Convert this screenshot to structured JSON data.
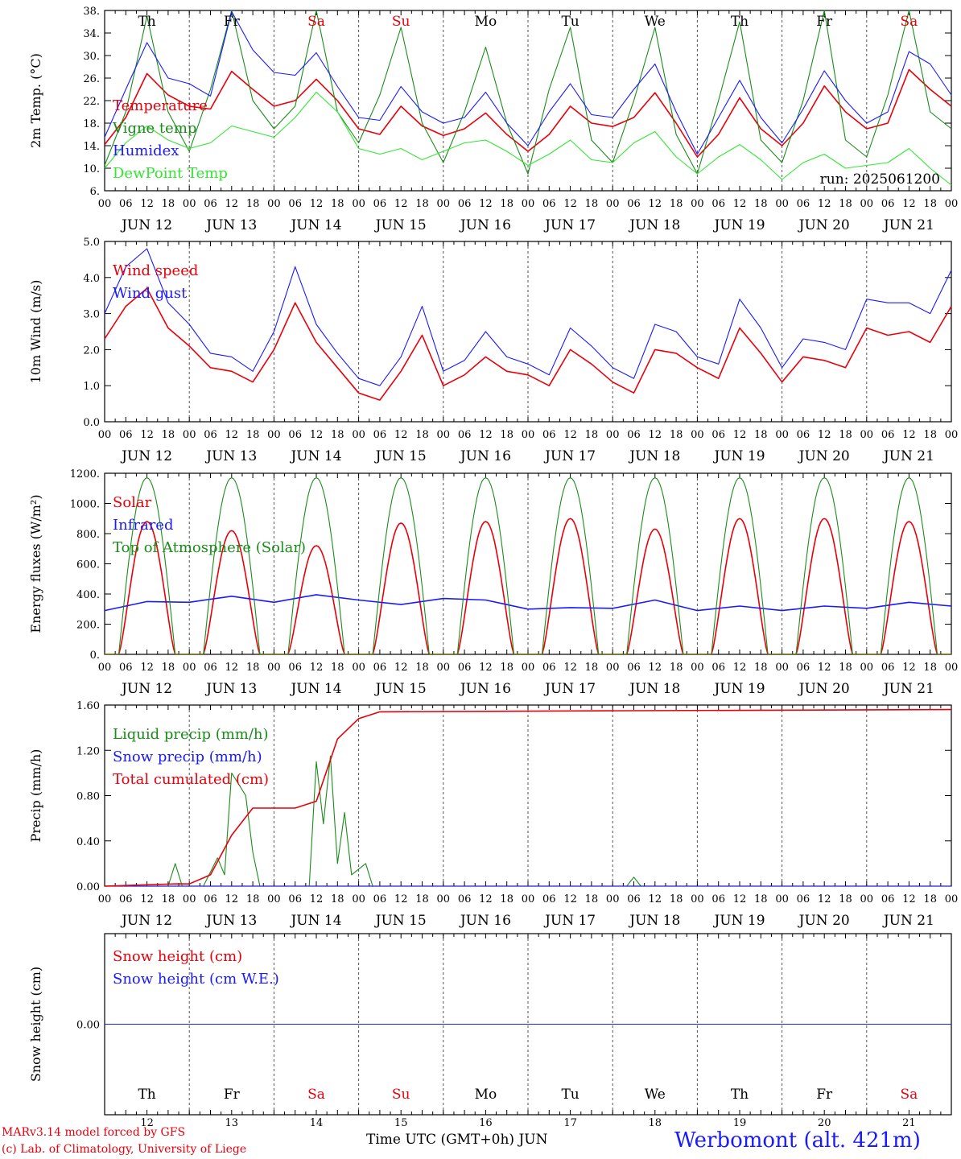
{
  "colors": {
    "red": "#e8000b",
    "green": "#1a8c1a",
    "blue": "#1a1aff",
    "lightgreen": "#33e633",
    "black": "#000000",
    "grid": "#555555"
  },
  "run_label": "run: 2025061200",
  "days": [
    {
      "abbr": "Th",
      "date": "JUN 12",
      "num": "12",
      "weekend": false
    },
    {
      "abbr": "Fr",
      "date": "JUN 13",
      "num": "13",
      "weekend": false
    },
    {
      "abbr": "Sa",
      "date": "JUN 14",
      "num": "14",
      "weekend": true
    },
    {
      "abbr": "Su",
      "date": "JUN 15",
      "num": "15",
      "weekend": true
    },
    {
      "abbr": "Mo",
      "date": "JUN 16",
      "num": "16",
      "weekend": false
    },
    {
      "abbr": "Tu",
      "date": "JUN 17",
      "num": "17",
      "weekend": false
    },
    {
      "abbr": "We",
      "date": "JUN 18",
      "num": "18",
      "weekend": false
    },
    {
      "abbr": "Th",
      "date": "JUN 19",
      "num": "19",
      "weekend": false
    },
    {
      "abbr": "Fr",
      "date": "JUN 20",
      "num": "20",
      "weekend": false
    },
    {
      "abbr": "Sa",
      "date": "JUN 21",
      "num": "21",
      "weekend": true
    }
  ],
  "hour_ticks": [
    "00",
    "06",
    "12",
    "18"
  ],
  "footer": {
    "credit_line1": "MARv3.14 model forced by GFS",
    "credit_line2": "(c) Lab. of Climatology, University of Liege",
    "xlabel": "Time UTC (GMT+0h)",
    "month": "JUN",
    "station": "Werbomont (alt. 421m)"
  },
  "chart_data": [
    {
      "type": "line",
      "ylabel": "2m Temp. (°C)",
      "ylim": [
        6,
        38
      ],
      "yticks": [
        6,
        10,
        14,
        18,
        22,
        26,
        30,
        34,
        38
      ],
      "ytick_labels": [
        "6.",
        "10.",
        "14.",
        "18.",
        "22.",
        "26.",
        "30.",
        "34.",
        "38."
      ],
      "x_unit": "hours since JUN 12 00 UTC",
      "x": [
        0,
        6,
        12,
        18,
        24,
        30,
        36,
        42,
        48,
        54,
        60,
        66,
        72,
        78,
        84,
        90,
        96,
        102,
        108,
        114,
        120,
        126,
        132,
        138,
        144,
        150,
        156,
        162,
        168,
        174,
        180,
        186,
        192,
        198,
        204,
        210,
        216,
        222,
        228,
        234,
        240
      ],
      "series": [
        {
          "name": "Temperature",
          "color": "red",
          "values": [
            14.2,
            19,
            26.8,
            23,
            21,
            20.5,
            27.2,
            24,
            21,
            22,
            25.8,
            22,
            17,
            16,
            21,
            17.5,
            15.8,
            17,
            19.8,
            16,
            13,
            16,
            21,
            18,
            17.4,
            19,
            23.4,
            18,
            12,
            16,
            22.5,
            17,
            14,
            18,
            24.6,
            20,
            17,
            18,
            27.5,
            24,
            21
          ]
        },
        {
          "name": "Vigne temp",
          "color": "green",
          "values": [
            10.5,
            20,
            37,
            20,
            13,
            24,
            38,
            22,
            17,
            21,
            38,
            20,
            14.5,
            23,
            35,
            18,
            11,
            20,
            31.5,
            18,
            9,
            24,
            35,
            15,
            11,
            22,
            35,
            16,
            9,
            22,
            36,
            15,
            11,
            22,
            38,
            15,
            12,
            23,
            38,
            20,
            17
          ]
        },
        {
          "name": "Humidex",
          "color": "blue",
          "values": [
            15.5,
            24,
            32.3,
            26,
            25,
            22.8,
            37.8,
            31,
            27,
            26.5,
            30.5,
            24.5,
            19,
            18.5,
            24.5,
            20,
            18,
            19,
            23.5,
            18,
            14,
            20,
            25,
            19.5,
            19,
            24,
            28.5,
            20,
            12.5,
            19,
            25.6,
            19,
            14.5,
            20.5,
            27.3,
            22,
            18,
            20,
            30.7,
            28.5,
            23
          ]
        },
        {
          "name": "DewPoint Temp",
          "color": "lightgreen",
          "values": [
            10,
            14.5,
            17.5,
            15,
            13.5,
            14.5,
            17.5,
            16.5,
            15.5,
            19,
            23.5,
            20,
            13.5,
            12.5,
            13.5,
            11.5,
            13,
            14.5,
            15,
            13,
            10.5,
            12.5,
            15,
            11.5,
            11,
            14.5,
            16.5,
            12,
            9,
            12,
            14.2,
            11.5,
            8,
            11,
            12.5,
            10,
            10.5,
            11,
            13.5,
            10,
            7
          ]
        }
      ]
    },
    {
      "type": "line",
      "ylabel": "10m Wind (m/s)",
      "ylim": [
        0,
        5
      ],
      "yticks": [
        0,
        1,
        2,
        3,
        4,
        5
      ],
      "ytick_labels": [
        "0.0",
        "1.0",
        "2.0",
        "3.0",
        "4.0",
        "5.0"
      ],
      "x_unit": "hours since JUN 12 00 UTC",
      "x": [
        0,
        6,
        12,
        18,
        24,
        30,
        36,
        42,
        48,
        54,
        60,
        66,
        72,
        78,
        84,
        90,
        96,
        102,
        108,
        114,
        120,
        126,
        132,
        138,
        144,
        150,
        156,
        162,
        168,
        174,
        180,
        186,
        192,
        198,
        204,
        210,
        216,
        222,
        228,
        234,
        240
      ],
      "series": [
        {
          "name": "Wind speed",
          "color": "red",
          "values": [
            2.3,
            3.2,
            3.7,
            2.6,
            2.1,
            1.5,
            1.4,
            1.1,
            2.0,
            3.3,
            2.2,
            1.5,
            0.8,
            0.6,
            1.4,
            2.4,
            1.0,
            1.3,
            1.8,
            1.4,
            1.3,
            1.0,
            2.0,
            1.6,
            1.1,
            0.8,
            2.0,
            1.9,
            1.5,
            1.2,
            2.6,
            1.9,
            1.1,
            1.8,
            1.7,
            1.5,
            2.6,
            2.4,
            2.5,
            2.2,
            3.2
          ]
        },
        {
          "name": "Wind gust",
          "color": "blue",
          "values": [
            3.0,
            4.3,
            4.8,
            3.3,
            2.7,
            1.9,
            1.8,
            1.4,
            2.5,
            4.3,
            2.7,
            1.9,
            1.2,
            1.0,
            1.8,
            3.2,
            1.4,
            1.7,
            2.5,
            1.8,
            1.6,
            1.3,
            2.6,
            2.1,
            1.5,
            1.2,
            2.7,
            2.5,
            1.8,
            1.6,
            3.4,
            2.6,
            1.5,
            2.3,
            2.2,
            2.0,
            3.4,
            3.3,
            3.3,
            3.0,
            4.2
          ]
        }
      ]
    },
    {
      "type": "line",
      "ylabel": "Energy fluxes (W/m²)",
      "ylim": [
        0,
        1200
      ],
      "yticks": [
        0,
        200,
        400,
        600,
        800,
        1000,
        1200
      ],
      "ytick_labels": [
        "0.",
        "200.",
        "400.",
        "600.",
        "800.",
        "1000.",
        "1200."
      ],
      "x_unit": "hours since JUN 12 00 UTC",
      "daily_peak_hour": 12,
      "series": [
        {
          "name": "Solar",
          "color": "red",
          "daily_peak": [
            880,
            820,
            720,
            870,
            880,
            900,
            830,
            900,
            900,
            880
          ]
        },
        {
          "name": "Infrared",
          "color": "blue",
          "x": [
            0,
            12,
            24,
            36,
            48,
            60,
            72,
            84,
            96,
            108,
            120,
            132,
            144,
            156,
            168,
            180,
            192,
            204,
            216,
            228,
            240
          ],
          "values": [
            290,
            350,
            345,
            385,
            345,
            395,
            360,
            330,
            370,
            360,
            300,
            310,
            305,
            360,
            290,
            320,
            290,
            320,
            305,
            345,
            320
          ]
        },
        {
          "name": "Top of Atmosphere (Solar)",
          "color": "green",
          "daily_peak": [
            1170,
            1170,
            1170,
            1170,
            1170,
            1170,
            1170,
            1170,
            1170,
            1170
          ]
        }
      ]
    },
    {
      "type": "line",
      "ylabel": "Precip (mm/h)",
      "ylim": [
        0,
        1.6
      ],
      "yticks": [
        0,
        0.4,
        0.8,
        1.2,
        1.6
      ],
      "ytick_labels": [
        "0.00",
        "0.40",
        "0.80",
        "1.20",
        "1.60"
      ],
      "x_unit": "hours since JUN 12 00 UTC",
      "series": [
        {
          "name": "Liquid precip (mm/h)",
          "color": "green",
          "x": [
            0,
            18,
            20,
            22,
            28,
            32,
            34,
            36,
            38,
            40,
            42,
            44,
            58,
            60,
            62,
            64,
            66,
            68,
            70,
            72,
            74,
            76,
            78,
            148,
            150,
            152,
            240
          ],
          "values": [
            0,
            0,
            0.2,
            0,
            0,
            0.25,
            0.1,
            1.0,
            0.9,
            0.8,
            0.3,
            0,
            0,
            1.1,
            0.55,
            1.15,
            0.2,
            0.65,
            0.1,
            0.15,
            0.2,
            0,
            0,
            0,
            0.08,
            0,
            0
          ]
        },
        {
          "name": "Snow precip (mm/h)",
          "color": "blue",
          "x": [
            0,
            240
          ],
          "values": [
            0,
            0
          ]
        },
        {
          "name": "Total cumulated (cm)",
          "color": "red",
          "x": [
            0,
            20,
            24,
            30,
            36,
            42,
            48,
            54,
            60,
            66,
            72,
            78,
            150,
            240
          ],
          "values": [
            0,
            0.02,
            0.02,
            0.1,
            0.45,
            0.69,
            0.69,
            0.69,
            0.75,
            1.3,
            1.48,
            1.54,
            1.55,
            1.56
          ]
        }
      ]
    },
    {
      "type": "line",
      "ylabel": "Snow height (cm)",
      "ylim": [
        -1,
        1
      ],
      "yticks": [
        0
      ],
      "ytick_labels": [
        "0.00"
      ],
      "x_unit": "hours since JUN 12 00 UTC",
      "series": [
        {
          "name": "Snow height (cm)",
          "color": "red",
          "x": [
            0,
            240
          ],
          "values": [
            0,
            0
          ]
        },
        {
          "name": "Snow height (cm W.E.)",
          "color": "blue",
          "x": [
            0,
            240
          ],
          "values": [
            0,
            0
          ]
        }
      ]
    }
  ]
}
